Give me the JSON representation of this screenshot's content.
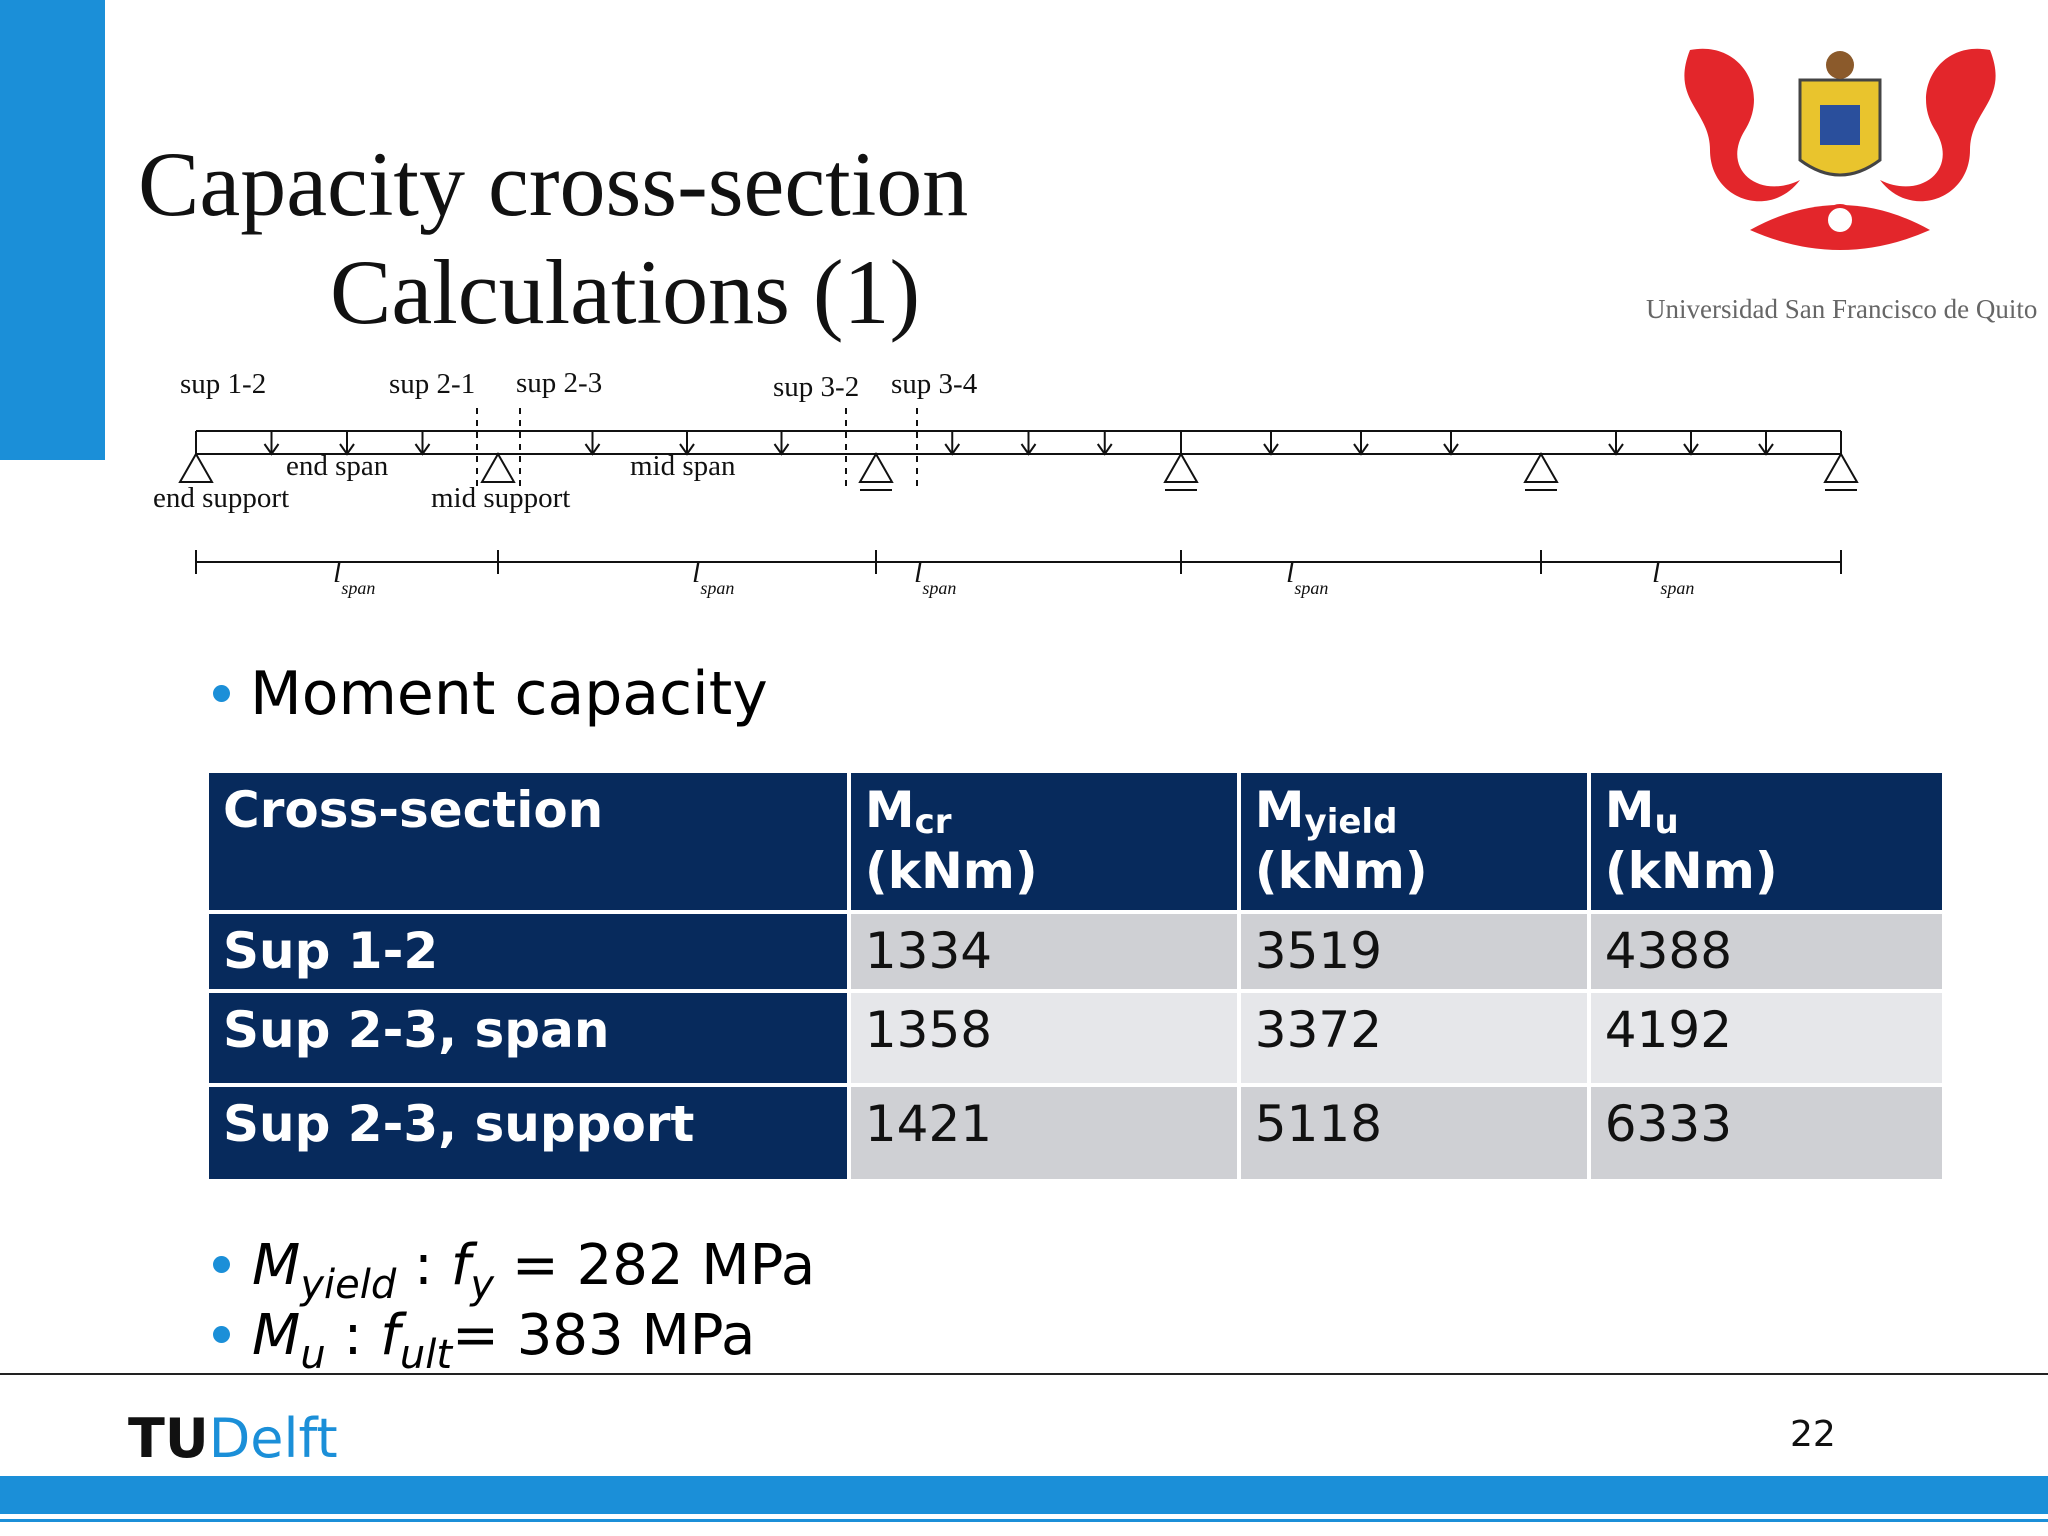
{
  "title": {
    "line1": "Capacity cross-section",
    "line2": "Calculations (1)"
  },
  "logo": {
    "caption": "Universidad San Francisco de Quito"
  },
  "diagram": {
    "labels": [
      {
        "text": "sup 1-2"
      },
      {
        "text": "sup 2-1"
      },
      {
        "text": "sup 2-3"
      },
      {
        "text": "sup 3-2"
      },
      {
        "text": "sup 3-4"
      },
      {
        "text": "end span"
      },
      {
        "text": "mid span"
      },
      {
        "text": "end support"
      },
      {
        "text": "mid support"
      }
    ],
    "spans": [
      {
        "symbol": "l",
        "subscript": "span"
      },
      {
        "symbol": "l",
        "subscript": "span"
      },
      {
        "symbol": "l",
        "subscript": "span"
      },
      {
        "symbol": "l",
        "subscript": "span"
      },
      {
        "symbol": "l",
        "subscript": "span"
      }
    ]
  },
  "bullets": [
    "Moment capacity"
  ],
  "table": {
    "header": [
      {
        "symbol": "Cross-section"
      },
      {
        "symbol": "M",
        "subscript": "cr",
        "unit": "(kNm)"
      },
      {
        "symbol": "M",
        "subscript": "yield",
        "unit": "(kNm)"
      },
      {
        "symbol": "M",
        "subscript": "u",
        "unit": "(kNm)"
      }
    ],
    "rows": [
      [
        "Sup 1-2",
        1334,
        3519,
        4388
      ],
      [
        "Sup 2-3, span",
        1358,
        3372,
        4192
      ],
      [
        "Sup 2-3, support",
        1421,
        5118,
        6333
      ]
    ]
  },
  "notes": [
    {
      "symbol": "M",
      "subscript": "yield",
      "separator": " : ",
      "variable": "f",
      "variable_subscript": "y",
      "rest": " = 282 MPa"
    },
    {
      "symbol": "M",
      "subscript": "u",
      "separator": " : ",
      "variable": "f",
      "variable_subscript": "ult",
      "rest": "= 383 MPa"
    }
  ],
  "footer": {
    "logo_tu": "TU",
    "logo_delft": "Delft",
    "page_number": "22"
  }
}
